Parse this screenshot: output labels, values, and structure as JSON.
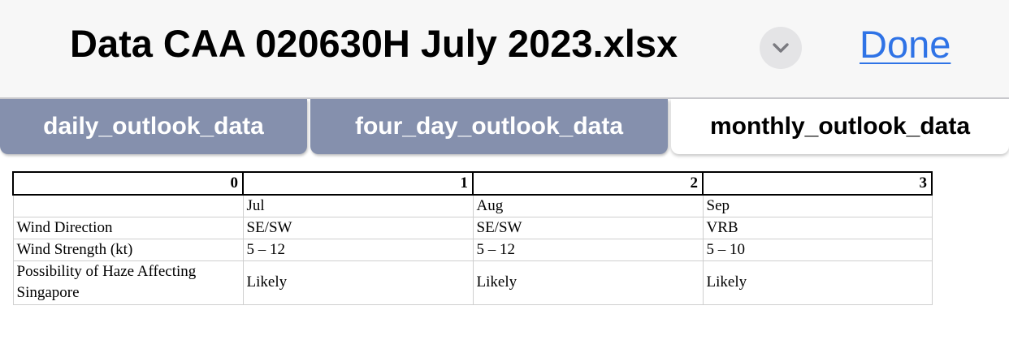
{
  "header": {
    "title": "Data CAA 020630H July 2023.xlsx",
    "menu_icon": "chevron-down-icon",
    "done_label": "Done"
  },
  "tabs": [
    {
      "label": "daily_outlook_data",
      "active": false
    },
    {
      "label": "four_day_outlook_data",
      "active": false
    },
    {
      "label": "monthly_outlook_data",
      "active": true
    }
  ],
  "sheet": {
    "column_headers": [
      "0",
      "1",
      "2",
      "3"
    ],
    "rows": [
      [
        "",
        "Jul",
        "Aug",
        "Sep"
      ],
      [
        "Wind Direction",
        "SE/SW",
        "SE/SW",
        "VRB"
      ],
      [
        "Wind Strength (kt)",
        "5 – 12",
        "5 – 12",
        "5 – 10"
      ],
      [
        "Possibility of Haze Affecting Singapore",
        "Likely",
        "Likely",
        "Likely"
      ]
    ]
  },
  "colors": {
    "header_bg": "#f7f7f7",
    "done_link": "#2f73e6",
    "inactive_tab_bg": "#8590ad",
    "active_tab_bg": "#ffffff"
  }
}
